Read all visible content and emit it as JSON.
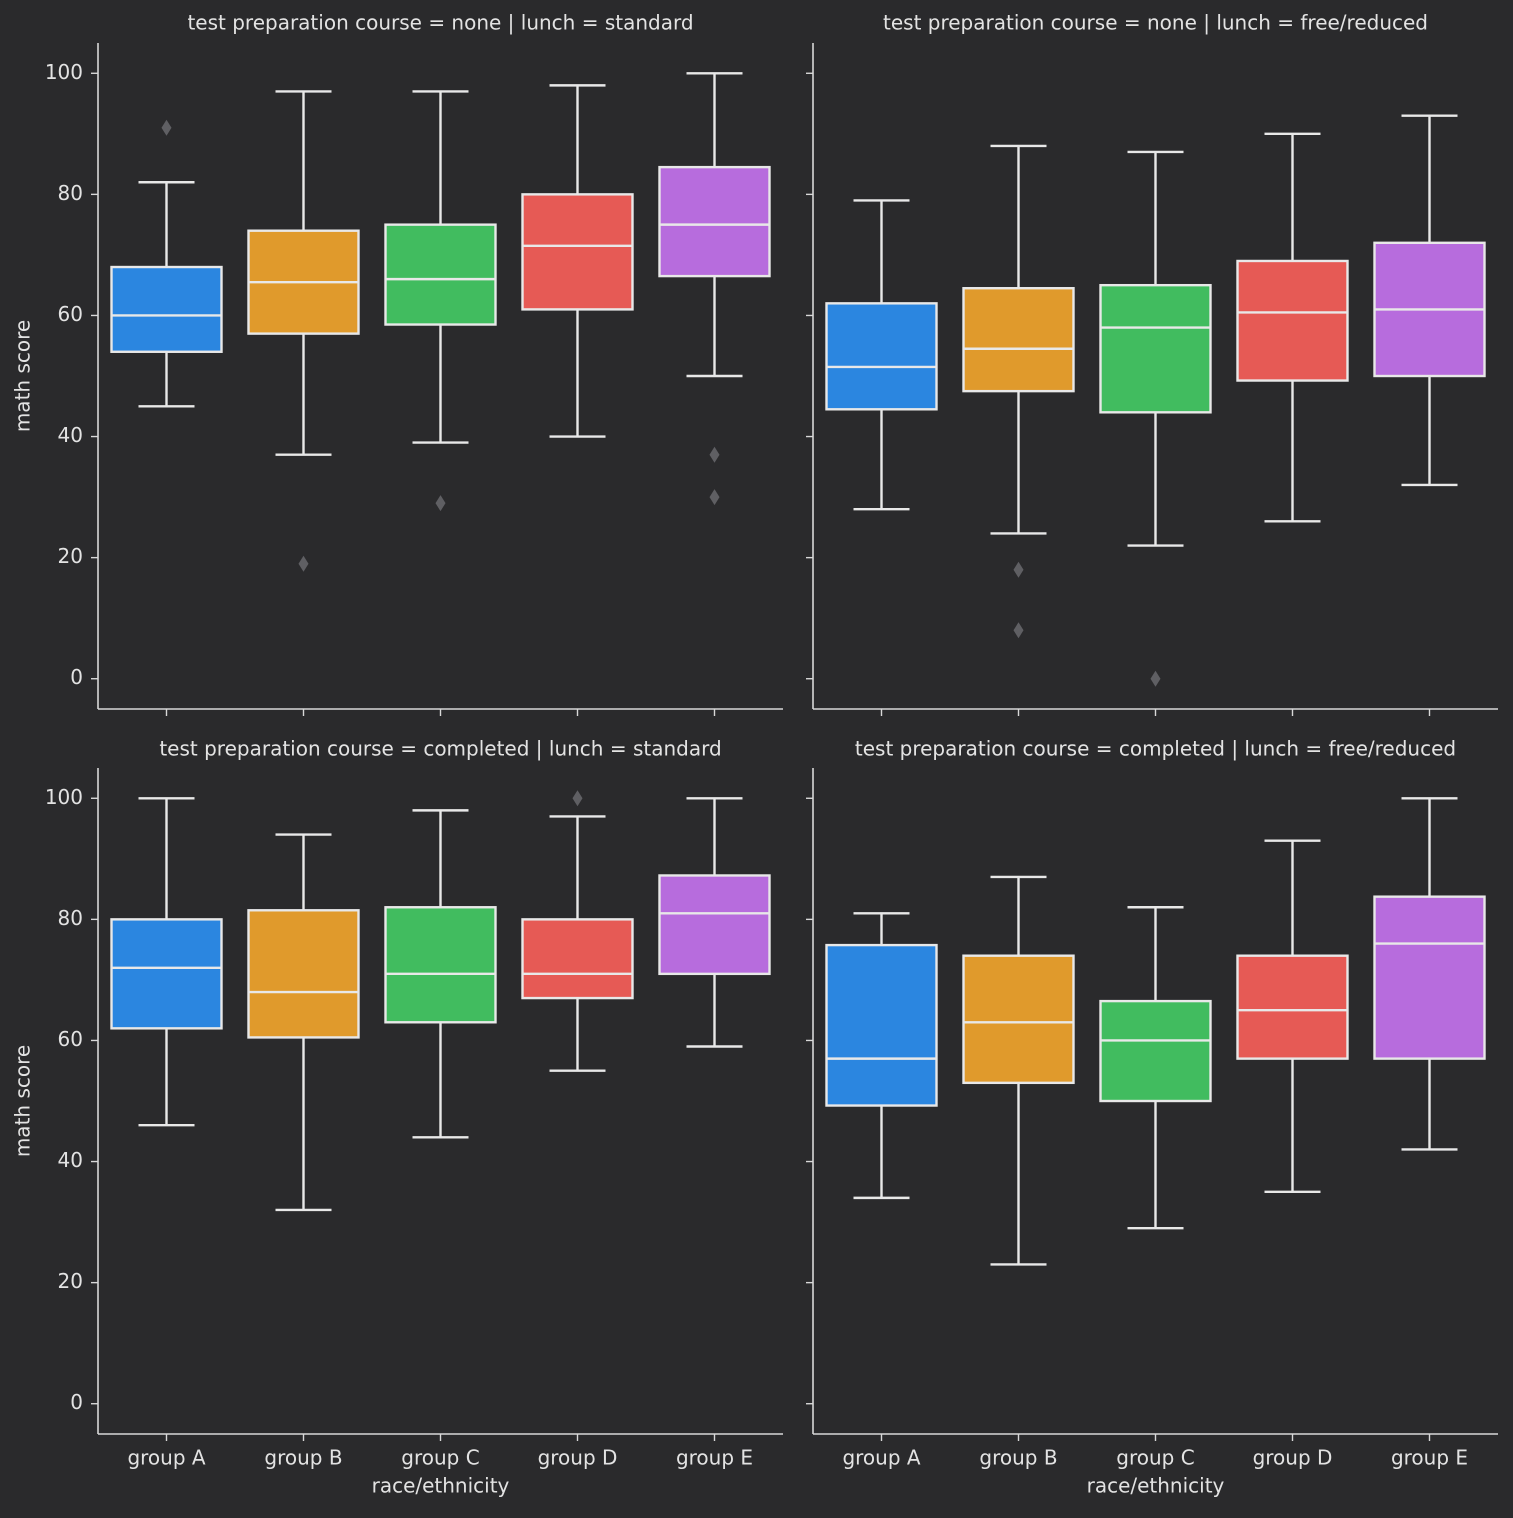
{
  "figure": {
    "background": "#2a2a2c",
    "axis_color": "#d8d8d8",
    "text_color": "#e3e3e3",
    "whisker_color": "#e8e8e8",
    "outlier_color": "#5f5f63"
  },
  "chart_data": {
    "type": "box",
    "facet_grid": {
      "rows": 2,
      "cols": 2,
      "shared_y": true,
      "shared_x": true
    },
    "x_label": "race/ethnicity",
    "y_label": "math score",
    "y_range": [
      -5,
      105
    ],
    "y_ticks": [
      0,
      20,
      40,
      60,
      80,
      100
    ],
    "categories": [
      "group A",
      "group B",
      "group C",
      "group D",
      "group E"
    ],
    "category_colors": [
      "#2b86e0",
      "#e09a2c",
      "#41bc5f",
      "#e65a55",
      "#b76cdd"
    ],
    "panels": [
      {
        "title": "test preparation course = none | lunch = standard",
        "boxes": [
          {
            "category": "group A",
            "whisker_low": 45,
            "q1": 54,
            "median": 60,
            "q3": 68,
            "whisker_high": 82,
            "outliers": [
              91
            ]
          },
          {
            "category": "group B",
            "whisker_low": 37,
            "q1": 57,
            "median": 65.5,
            "q3": 74,
            "whisker_high": 97,
            "outliers": [
              19
            ]
          },
          {
            "category": "group C",
            "whisker_low": 39,
            "q1": 58.5,
            "median": 66,
            "q3": 75,
            "whisker_high": 97,
            "outliers": [
              29
            ]
          },
          {
            "category": "group D",
            "whisker_low": 40,
            "q1": 61,
            "median": 71.5,
            "q3": 80,
            "whisker_high": 98,
            "outliers": []
          },
          {
            "category": "group E",
            "whisker_low": 50,
            "q1": 66.5,
            "median": 75,
            "q3": 84.5,
            "whisker_high": 100,
            "outliers": [
              37,
              30
            ]
          }
        ]
      },
      {
        "title": "test preparation course = none | lunch = free/reduced",
        "boxes": [
          {
            "category": "group A",
            "whisker_low": 28,
            "q1": 44.5,
            "median": 51.5,
            "q3": 62,
            "whisker_high": 79,
            "outliers": []
          },
          {
            "category": "group B",
            "whisker_low": 24,
            "q1": 47.5,
            "median": 54.5,
            "q3": 64.5,
            "whisker_high": 88,
            "outliers": [
              18,
              8
            ]
          },
          {
            "category": "group C",
            "whisker_low": 22,
            "q1": 44,
            "median": 58,
            "q3": 65,
            "whisker_high": 87,
            "outliers": [
              0
            ]
          },
          {
            "category": "group D",
            "whisker_low": 26,
            "q1": 49.25,
            "median": 60.5,
            "q3": 69,
            "whisker_high": 90,
            "outliers": []
          },
          {
            "category": "group E",
            "whisker_low": 32,
            "q1": 50,
            "median": 61,
            "q3": 72,
            "whisker_high": 93,
            "outliers": []
          }
        ]
      },
      {
        "title": "test preparation course = completed | lunch = standard",
        "boxes": [
          {
            "category": "group A",
            "whisker_low": 46,
            "q1": 62,
            "median": 72,
            "q3": 80,
            "whisker_high": 100,
            "outliers": []
          },
          {
            "category": "group B",
            "whisker_low": 32,
            "q1": 60.5,
            "median": 68,
            "q3": 81.5,
            "whisker_high": 94,
            "outliers": []
          },
          {
            "category": "group C",
            "whisker_low": 44,
            "q1": 63,
            "median": 71,
            "q3": 82,
            "whisker_high": 98,
            "outliers": []
          },
          {
            "category": "group D",
            "whisker_low": 55,
            "q1": 67,
            "median": 71,
            "q3": 80,
            "whisker_high": 97,
            "outliers": [
              100
            ]
          },
          {
            "category": "group E",
            "whisker_low": 59,
            "q1": 71,
            "median": 81,
            "q3": 87.25,
            "whisker_high": 100,
            "outliers": []
          }
        ]
      },
      {
        "title": "test preparation course = completed | lunch = free/reduced",
        "boxes": [
          {
            "category": "group A",
            "whisker_low": 34,
            "q1": 49.25,
            "median": 57,
            "q3": 75.75,
            "whisker_high": 81,
            "outliers": []
          },
          {
            "category": "group B",
            "whisker_low": 23,
            "q1": 53,
            "median": 63,
            "q3": 74,
            "whisker_high": 87,
            "outliers": []
          },
          {
            "category": "group C",
            "whisker_low": 29,
            "q1": 50,
            "median": 60,
            "q3": 66.5,
            "whisker_high": 82,
            "outliers": []
          },
          {
            "category": "group D",
            "whisker_low": 35,
            "q1": 57,
            "median": 65,
            "q3": 74,
            "whisker_high": 93,
            "outliers": []
          },
          {
            "category": "group E",
            "whisker_low": 42,
            "q1": 57,
            "median": 76,
            "q3": 83.75,
            "whisker_high": 100,
            "outliers": []
          }
        ]
      }
    ]
  }
}
